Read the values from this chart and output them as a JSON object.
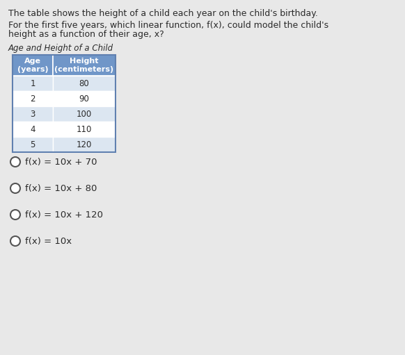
{
  "paragraph1": "The table shows the height of a child each year on the child's birthday.",
  "paragraph2_line1": "For the first five years, which linear function, f(x), could model the child's",
  "paragraph2_line2": "height as a function of their age, x?",
  "title_text": "Age and Height of a Child",
  "col_headers": [
    "Age\n(years)",
    "Height\n(centimeters)"
  ],
  "table_data": [
    [
      "1",
      "80"
    ],
    [
      "2",
      "90"
    ],
    [
      "3",
      "100"
    ],
    [
      "4",
      "110"
    ],
    [
      "5",
      "120"
    ]
  ],
  "options": [
    "f(x) = 10x + 70",
    "f(x) = 10x + 80",
    "f(x) = 10x + 120",
    "f(x) = 10x"
  ],
  "header_bg": "#7096c8",
  "row_bg_odd": "#dce6f1",
  "row_bg_even": "#ffffff",
  "text_color": "#2a2a2a",
  "bg_color": "#e8e8e8",
  "font_size_para": 9.0,
  "font_size_title": 8.5,
  "font_size_table_header": 8.0,
  "font_size_table_data": 8.5,
  "font_size_options": 9.5
}
